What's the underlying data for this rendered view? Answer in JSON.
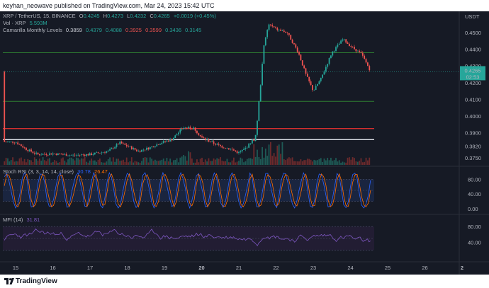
{
  "publisher": "keyhan_neowave published on TradingView.com, Mar 24, 2023 15:42 UTC",
  "brand": "TradingView",
  "legend": {
    "symbol": "XRP / TetherUS, 15, BINANCE",
    "ohlc": [
      {
        "k": "O",
        "v": "0.4245"
      },
      {
        "k": "H",
        "v": "0.4273"
      },
      {
        "k": "L",
        "v": "0.4232"
      },
      {
        "k": "C",
        "v": "0.4265"
      }
    ],
    "change": "+0.0019 (+0.45%)",
    "vol_label": "Vol · XRP",
    "vol_value": "5.593M",
    "cam_label": "Camarilla Monthly Levels",
    "cam_values": [
      "0.3859",
      "0.4379",
      "0.4088",
      "0.3925",
      "0.3599",
      "0.3436",
      "0.3145"
    ],
    "stoch_label": "Stoch RSI (3, 3, 14, 14, close)",
    "stoch_k": "30.78",
    "stoch_d": "26.47",
    "mfi_label": "MFI (14)",
    "mfi_value": "31.81"
  },
  "colors": {
    "background": "#161a25",
    "up": "#26a69a",
    "down": "#ef5350",
    "green_level": "#2e7d32",
    "red_level": "#d32f2f",
    "white_level": "#e0e3eb",
    "stoch_k": "#2962ff",
    "stoch_d": "#ff6d00",
    "mfi": "#7e57c2"
  },
  "chart_data": {
    "type": "candlestick",
    "symbol": "XRP / TetherUS",
    "timeframe": "15",
    "exchange": "BINANCE",
    "x_ticks": [
      "15",
      "16",
      "17",
      "18",
      "19",
      "20",
      "21",
      "22",
      "23",
      "24",
      "25",
      "26",
      "2"
    ],
    "y_ticks": [
      "0.4500",
      "0.4400",
      "0.4300",
      "0.4200",
      "0.4100",
      "0.4000",
      "0.3900",
      "0.3820",
      "0.3750"
    ],
    "y_axis_label": "USDT",
    "last_price": "0.4265",
    "countdown": "02:53",
    "price_path": [
      {
        "x": 15.0,
        "y": 0.3845
      },
      {
        "x": 15.3,
        "y": 0.38
      },
      {
        "x": 15.6,
        "y": 0.377
      },
      {
        "x": 16.0,
        "y": 0.3775
      },
      {
        "x": 16.5,
        "y": 0.3765
      },
      {
        "x": 17.0,
        "y": 0.377
      },
      {
        "x": 17.5,
        "y": 0.379
      },
      {
        "x": 17.8,
        "y": 0.384
      },
      {
        "x": 18.0,
        "y": 0.382
      },
      {
        "x": 18.3,
        "y": 0.379
      },
      {
        "x": 18.6,
        "y": 0.381
      },
      {
        "x": 18.9,
        "y": 0.384
      },
      {
        "x": 19.2,
        "y": 0.386
      },
      {
        "x": 19.5,
        "y": 0.393
      },
      {
        "x": 19.8,
        "y": 0.3925
      },
      {
        "x": 20.0,
        "y": 0.387
      },
      {
        "x": 20.2,
        "y": 0.385
      },
      {
        "x": 20.5,
        "y": 0.382
      },
      {
        "x": 20.8,
        "y": 0.38
      },
      {
        "x": 21.0,
        "y": 0.378
      },
      {
        "x": 21.2,
        "y": 0.381
      },
      {
        "x": 21.45,
        "y": 0.388
      },
      {
        "x": 21.55,
        "y": 0.41
      },
      {
        "x": 21.65,
        "y": 0.438
      },
      {
        "x": 21.8,
        "y": 0.455
      },
      {
        "x": 22.0,
        "y": 0.452
      },
      {
        "x": 22.3,
        "y": 0.45
      },
      {
        "x": 22.6,
        "y": 0.438
      },
      {
        "x": 22.8,
        "y": 0.425
      },
      {
        "x": 23.0,
        "y": 0.415
      },
      {
        "x": 23.2,
        "y": 0.422
      },
      {
        "x": 23.5,
        "y": 0.438
      },
      {
        "x": 23.8,
        "y": 0.446
      },
      {
        "x": 24.0,
        "y": 0.442
      },
      {
        "x": 24.3,
        "y": 0.437
      },
      {
        "x": 24.55,
        "y": 0.4265
      }
    ],
    "levels": [
      {
        "price": 0.4379,
        "color": "green"
      },
      {
        "price": 0.4088,
        "color": "green"
      },
      {
        "price": 0.3925,
        "color": "red"
      },
      {
        "price": 0.3859,
        "color": "white"
      }
    ],
    "stoch_rsi": {
      "ticks": [
        "80.00",
        "40.00",
        "0.00"
      ],
      "upper": 80,
      "lower": 20
    },
    "mfi": {
      "ticks": [
        "80.00",
        "40.00"
      ],
      "upper": 80,
      "lower": 20
    }
  }
}
